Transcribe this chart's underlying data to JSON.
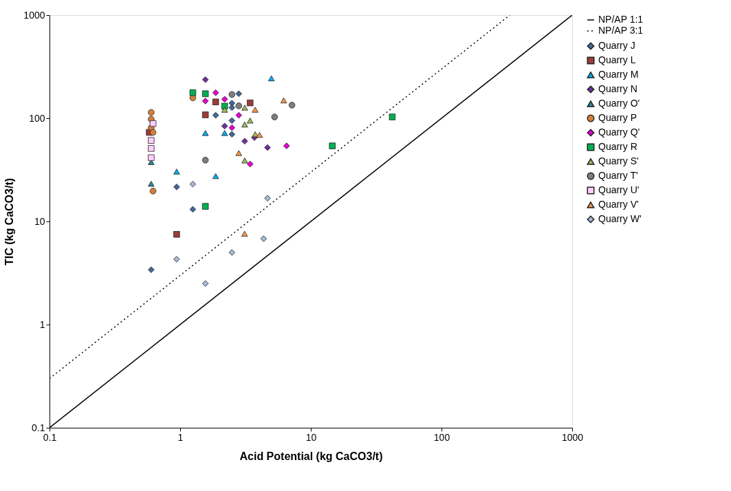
{
  "chart_data": {
    "type": "scatter",
    "xlabel": "Acid Potential (kg CaCO3/t)",
    "ylabel": "TIC (kg CaCO3/t)",
    "log": "xy",
    "grid": false,
    "legend": "right",
    "xlim": [
      0.1,
      1000
    ],
    "ylim": [
      0.1,
      1000
    ],
    "xticks": [
      0.1,
      1,
      10,
      100,
      1000
    ],
    "yticks": [
      0.1,
      1,
      10,
      100,
      1000
    ],
    "series": [
      {
        "name": "Quarry J",
        "color": "#41689a",
        "marker": "diamond",
        "x": [
          0.6,
          0.94,
          1.25,
          1.87,
          2.81,
          2.49,
          2.49,
          2.49,
          2.49
        ],
        "values": [
          3.4,
          21.6,
          13.1,
          107,
          173,
          140,
          127,
          95,
          70
        ]
      },
      {
        "name": "Quarry L",
        "color": "#9b3d3a",
        "marker": "square",
        "x": [
          0.58,
          1.56,
          1.87,
          3.43,
          0.94
        ],
        "values": [
          73,
          108,
          144,
          141,
          7.5
        ]
      },
      {
        "name": "Quarry M",
        "color": "#00b0f0",
        "marker": "triangle",
        "x": [
          1.56,
          0.94,
          4.99,
          2.19,
          1.87
        ],
        "values": [
          72,
          30.4,
          244,
          72,
          27.5
        ]
      },
      {
        "name": "Quarry N",
        "color": "#7030a0",
        "marker": "diamond",
        "x": [
          1.56,
          2.19,
          3.7,
          3.12,
          4.66
        ],
        "values": [
          237,
          84,
          65,
          60,
          52
        ]
      },
      {
        "name": "Quarry O'",
        "color": "#31859c",
        "marker": "triangle",
        "x": [
          0.6,
          0.6
        ],
        "values": [
          23.2,
          37.6
        ]
      },
      {
        "name": "Quarry P",
        "color": "#d5803a",
        "marker": "circle",
        "x": [
          1.25,
          0.62,
          0.6,
          0.6,
          0.6,
          0.62
        ],
        "values": [
          158,
          19.7,
          114,
          98,
          81,
          73
        ]
      },
      {
        "name": "Quarry Q'",
        "color": "#e600d6",
        "marker": "diamond",
        "x": [
          1.56,
          1.87,
          2.19,
          2.81,
          2.49,
          6.52,
          3.43
        ],
        "values": [
          147,
          177,
          153,
          107,
          81,
          54,
          36
        ]
      },
      {
        "name": "Quarry R",
        "color": "#00b050",
        "marker": "square",
        "x": [
          1.25,
          1.56,
          1.56,
          2.19,
          14.6,
          42
        ],
        "values": [
          177,
          173,
          14.0,
          131,
          54,
          103
        ]
      },
      {
        "name": "Quarry S'",
        "color": "#9bbb59",
        "marker": "triangle",
        "x": [
          2.19,
          3.12,
          3.12,
          3.43,
          3.75,
          3.12
        ],
        "values": [
          121,
          127,
          87,
          95,
          70,
          39
        ]
      },
      {
        "name": "Quarry T'",
        "color": "#7f7f7f",
        "marker": "circle",
        "x": [
          1.56,
          2.49,
          2.81,
          5.28,
          7.17
        ],
        "values": [
          39.3,
          170,
          132,
          103,
          134
        ]
      },
      {
        "name": "Quarry U'",
        "color": "#ffccff",
        "marker": "square",
        "x": [
          0.62,
          0.6,
          0.6,
          0.6
        ],
        "values": [
          89,
          61,
          51,
          41.5
        ]
      },
      {
        "name": "Quarry V'",
        "color": "#f79646",
        "marker": "triangle",
        "x": [
          3.75,
          6.2,
          4.05,
          2.81,
          3.11
        ],
        "values": [
          121,
          149,
          69,
          46,
          7.6
        ]
      },
      {
        "name": "Quarry W'",
        "color": "#a6b8d8",
        "marker": "diamond",
        "x": [
          1.25,
          0.94,
          1.56,
          2.49,
          4.35,
          4.66
        ],
        "values": [
          23.0,
          4.3,
          2.5,
          5.0,
          6.8,
          16.8
        ]
      },
      {
        "name": "NP/AP 1:1",
        "type": "line",
        "color": "#000000",
        "line_style": "solid",
        "x": [
          0.1,
          1000
        ],
        "values": [
          0.1,
          1000
        ]
      },
      {
        "name": "NP/AP 3:1",
        "type": "line",
        "color": "#000000",
        "line_style": "dotted",
        "x": [
          0.1,
          333.3
        ],
        "values": [
          0.3,
          1000
        ]
      }
    ]
  }
}
